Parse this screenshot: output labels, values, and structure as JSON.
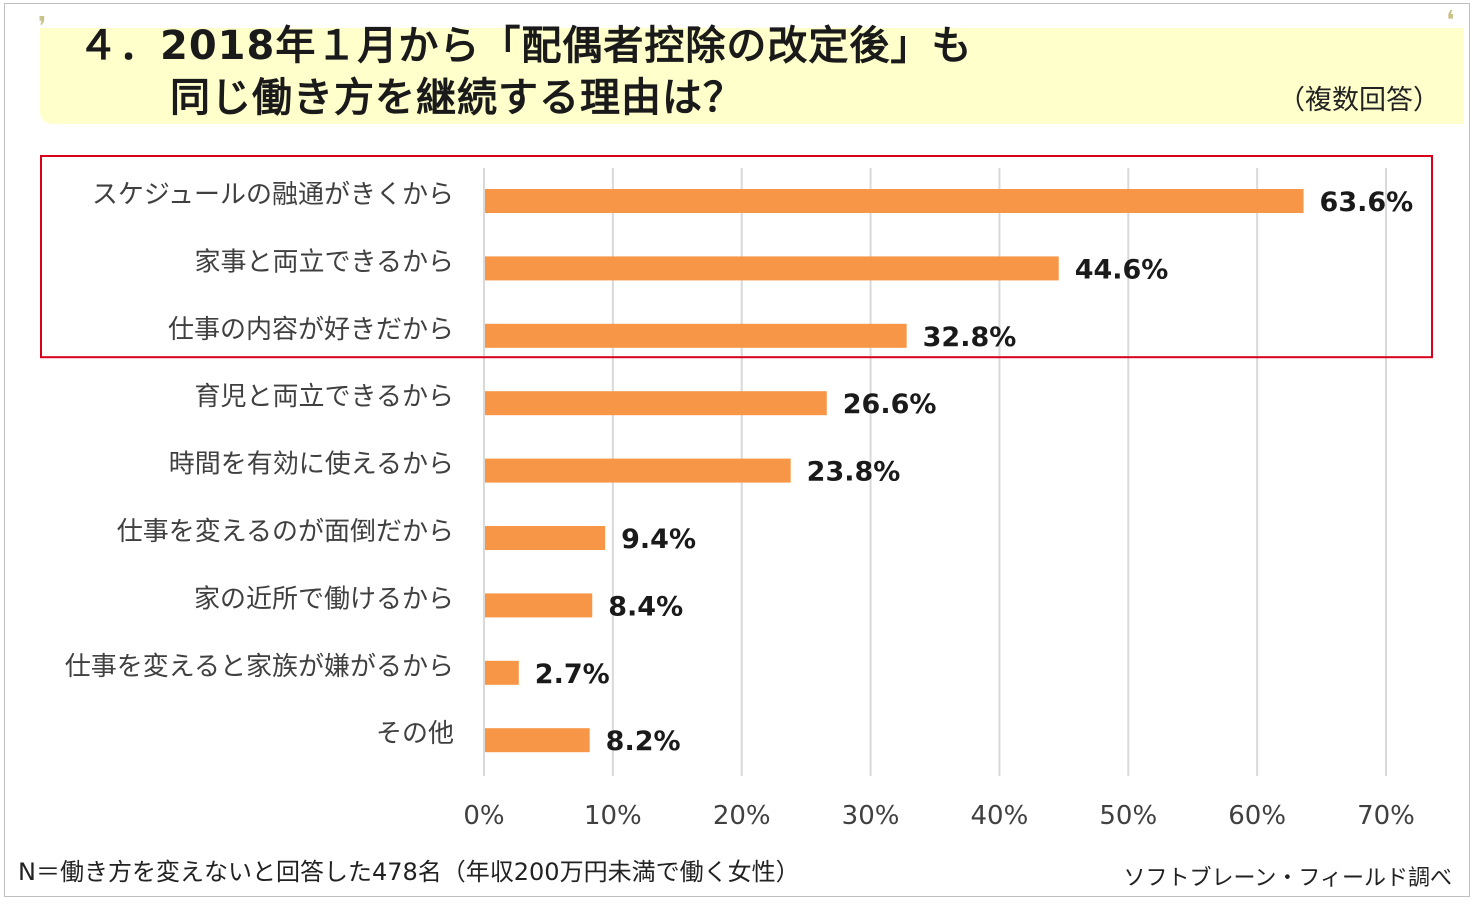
{
  "header": {
    "title_line1": "４．2018年１月から「配偶者控除の改定後」も",
    "title_line2": "同じ働き方を継続する理由は？",
    "note": "（複数回答）"
  },
  "footer": {
    "sample": "N＝働き方を変えないと回答した478名（年収200万円未満で働く女性）",
    "source": "ソフトブレーン・フィールド調べ"
  },
  "chart_data": {
    "type": "bar",
    "orientation": "horizontal",
    "categories": [
      "スケジュールの融通がきくから",
      "家事と両立できるから",
      "仕事の内容が好きだから",
      "育児と両立できるから",
      "時間を有効に使えるから",
      "仕事を変えるのが面倒だから",
      "家の近所で働けるから",
      "仕事を変えると家族が嫌がるから",
      "その他"
    ],
    "values": [
      63.6,
      44.6,
      32.8,
      26.6,
      23.8,
      9.4,
      8.4,
      2.7,
      8.2
    ],
    "value_labels": [
      "63.6%",
      "44.6%",
      "32.8%",
      "26.6%",
      "23.8%",
      "9.4%",
      "8.4%",
      "2.7%",
      "8.2%"
    ],
    "xlim": [
      0,
      70
    ],
    "xticks": [
      0,
      10,
      20,
      30,
      40,
      50,
      60,
      70
    ],
    "xtick_labels": [
      "0%",
      "10%",
      "20%",
      "30%",
      "40%",
      "50%",
      "60%",
      "70%"
    ],
    "grid": "vertical",
    "highlighted_categories": [
      0,
      1,
      2
    ],
    "colors": {
      "bar": "#f79646",
      "grid": "#d9d9d9",
      "highlight_box": "#d9001b"
    }
  }
}
